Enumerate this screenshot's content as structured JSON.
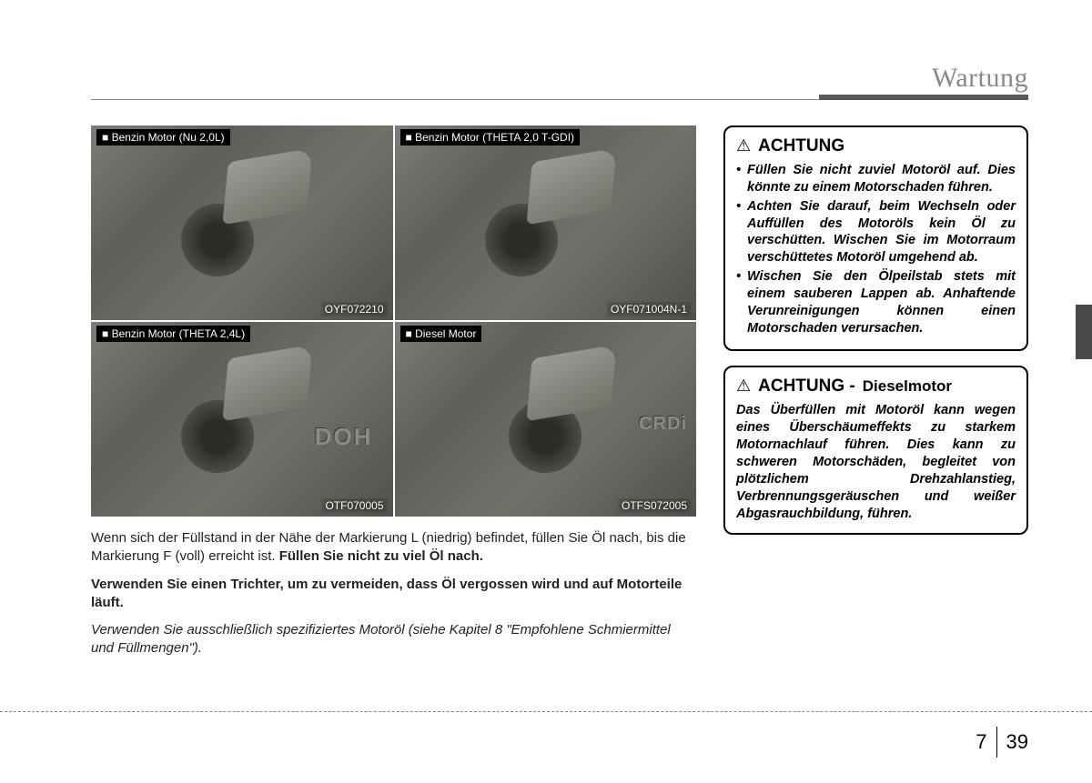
{
  "header": {
    "title": "Wartung"
  },
  "images": {
    "top_left": {
      "label": "■ Benzin Motor (Nu 2,0L)",
      "code": "OYF072210"
    },
    "top_right": {
      "label": "■ Benzin Motor (THETA 2,0 T-GDI)",
      "code": "OYF071004N-1"
    },
    "bot_left": {
      "label": "■ Benzin Motor (THETA 2,4L)",
      "code": "OTF070005",
      "badge": "DOH"
    },
    "bot_right": {
      "label": "■ Diesel Motor",
      "code": "OTFS072005",
      "badge": "CRDi"
    }
  },
  "body": {
    "p1a": "Wenn sich der Füllstand in der Nähe der Markierung L (niedrig) befindet, füllen Sie Öl nach, bis die Markierung F (voll) erreicht ist. ",
    "p1b": "Füllen Sie nicht zu viel Öl nach.",
    "p2": "Verwenden Sie einen Trichter, um zu vermeiden, dass Öl vergossen wird und auf Motorteile läuft.",
    "p3": "Verwenden Sie ausschließlich spezifiziertes Motoröl (siehe Kapitel 8 \"Empfohlene Schmiermittel und Füllmengen\")."
  },
  "caution1": {
    "title": "ACHTUNG",
    "items": [
      "Füllen Sie nicht zuviel Motoröl auf. Dies könnte zu einem Motorschaden führen.",
      "Achten Sie darauf, beim Wechseln oder Auffüllen des Motoröls kein Öl zu verschütten. Wischen Sie im Motorraum verschüttetes Motoröl umgehend ab.",
      "Wischen Sie den Ölpeilstab stets mit einem sauberen Lappen ab. Anhaftende Verunreinigungen können einen Motorschaden verursachen."
    ]
  },
  "caution2": {
    "title": "ACHTUNG -",
    "subtitle": "Dieselmotor",
    "text": "Das Überfüllen mit Motoröl kann wegen eines Überschäumeffekts zu starkem Motornachlauf führen. Dies kann zu schweren Motorschäden, begleitet von plötzlichem Drehzahl­anstieg, Verbrennungsgeräuschen und weißer Abgasrauchbildung, führen."
  },
  "footer": {
    "chapter": "7",
    "page": "39"
  }
}
